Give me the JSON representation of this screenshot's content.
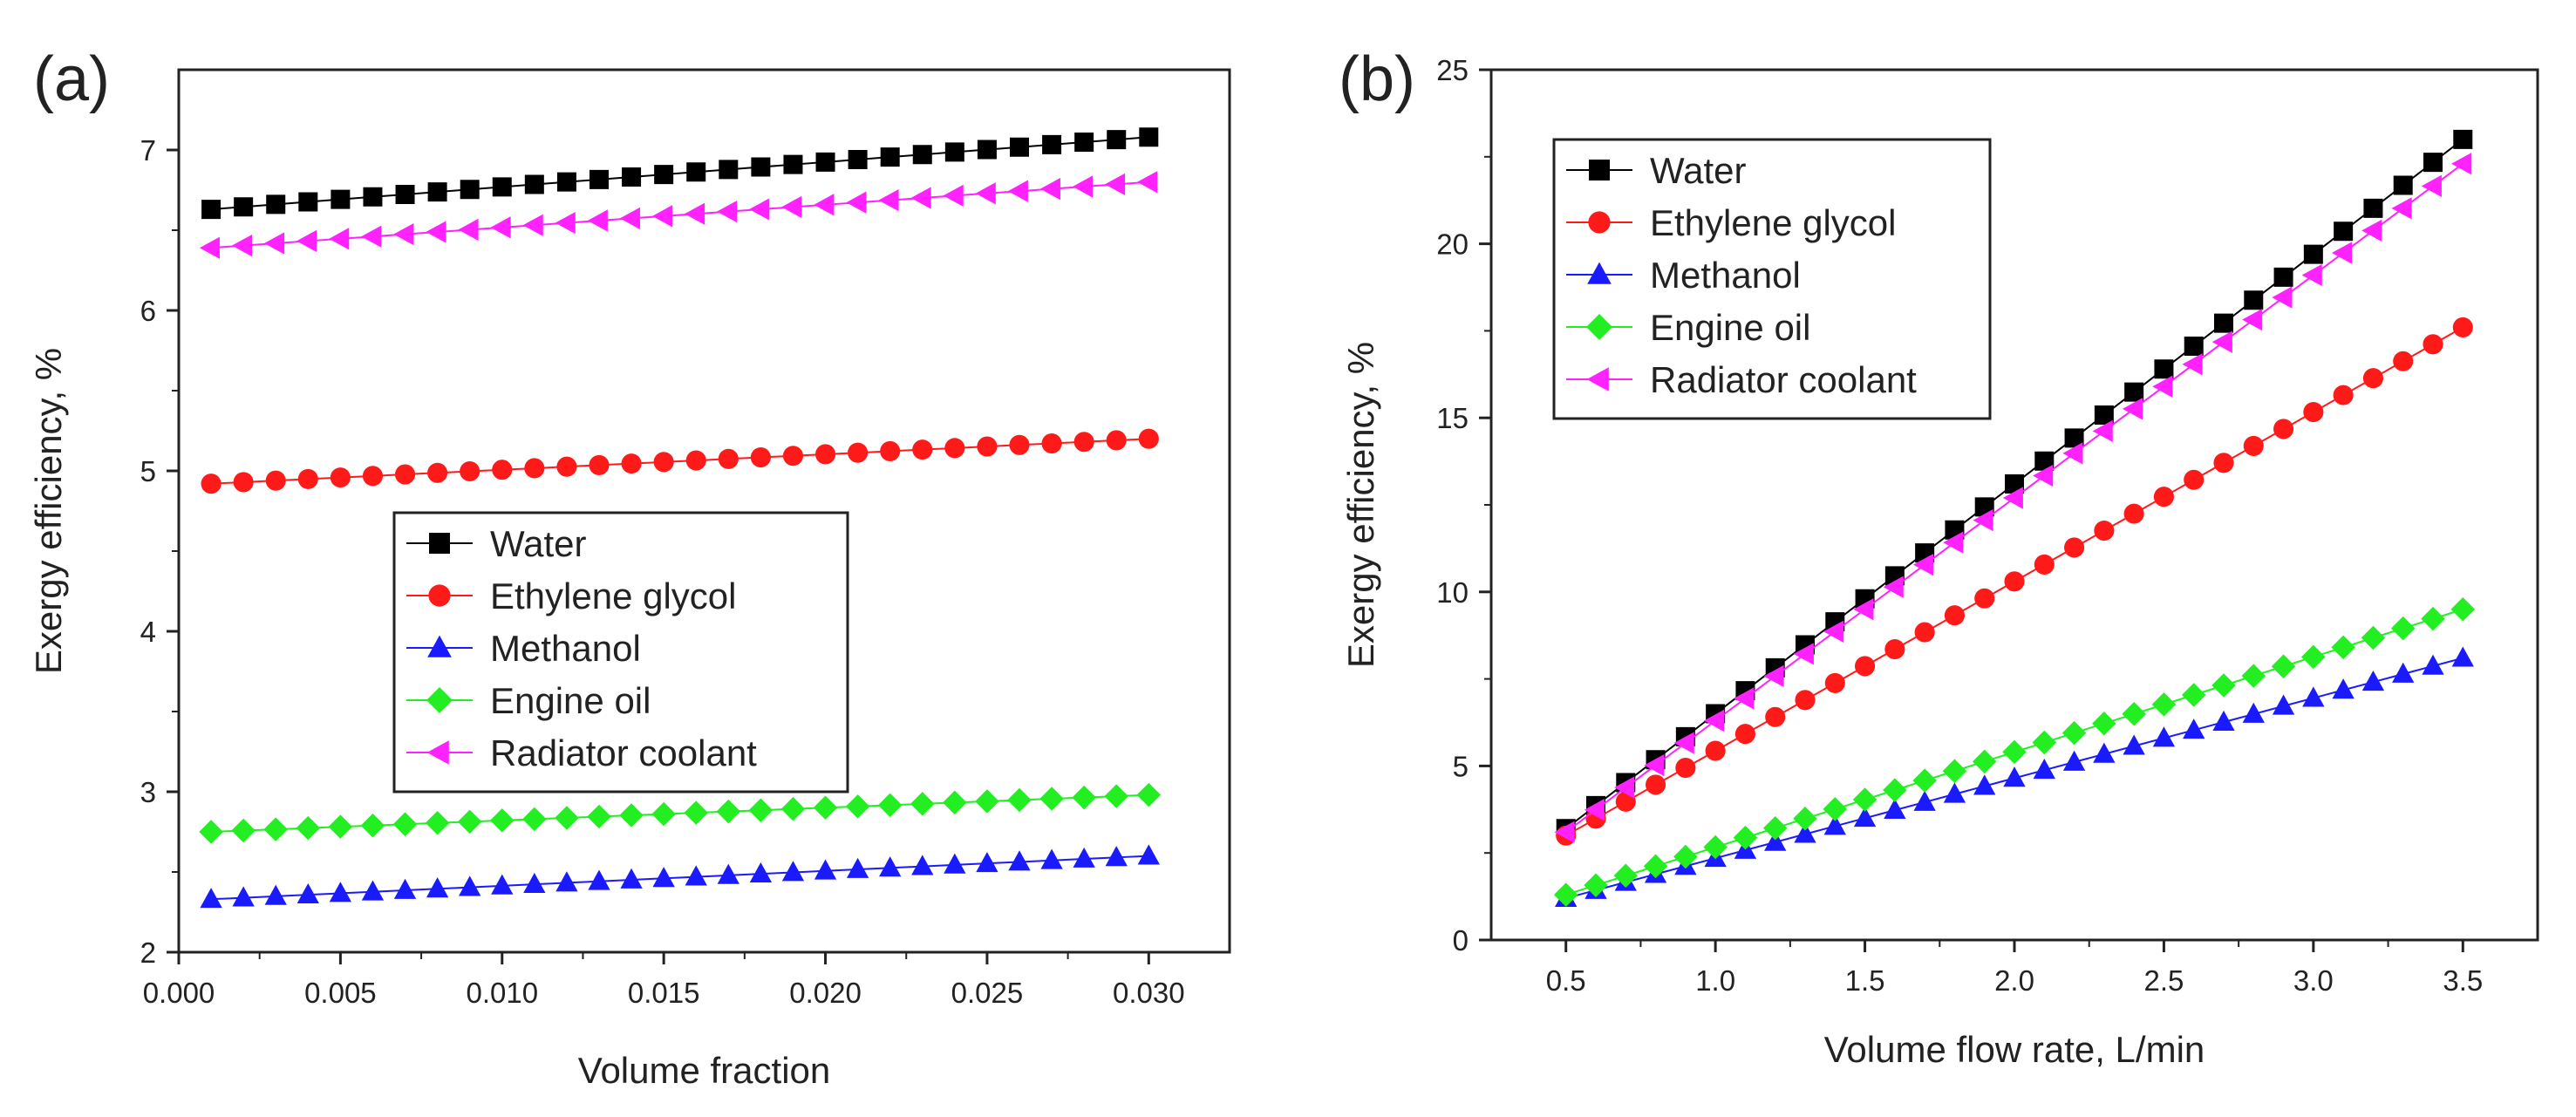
{
  "figure": {
    "panels": [
      "(a)",
      "(b)"
    ]
  },
  "colors": {
    "Water": "#000000",
    "Ethylene glycol": "#ff1a1a",
    "Methanol": "#1a1aff",
    "Engine oil": "#22ee22",
    "Radiator coolant": "#ff22ff"
  },
  "markers": {
    "Water": "square",
    "Ethylene glycol": "circle",
    "Methanol": "triangle-up",
    "Engine oil": "diamond",
    "Radiator coolant": "triangle-left"
  },
  "chart_data": [
    {
      "panel_label": "(a)",
      "type": "line",
      "title": "",
      "xlabel": "Volume fraction",
      "ylabel": "Exergy efficiency, %",
      "xlim": [
        0.0,
        0.0325
      ],
      "ylim": [
        2,
        7.5
      ],
      "xticks": [
        0.0,
        0.005,
        0.01,
        0.015,
        0.02,
        0.025,
        0.03
      ],
      "xtick_labels": [
        "0.000",
        "0.005",
        "0.010",
        "0.015",
        "0.020",
        "0.025",
        "0.030"
      ],
      "yticks": [
        2,
        3,
        4,
        5,
        6,
        7
      ],
      "ytick_labels": [
        "2",
        "3",
        "4",
        "5",
        "6",
        "7"
      ],
      "legend_position": "center",
      "x": {
        "start": 0.001,
        "end": 0.03,
        "count": 30
      },
      "series": [
        {
          "name": "Water",
          "start": 6.63,
          "end": 7.08
        },
        {
          "name": "Ethylene glycol",
          "start": 4.92,
          "end": 5.2
        },
        {
          "name": "Methanol",
          "start": 2.33,
          "end": 2.6
        },
        {
          "name": "Engine oil",
          "start": 2.75,
          "end": 2.98
        },
        {
          "name": "Radiator coolant",
          "start": 6.39,
          "end": 6.8
        }
      ]
    },
    {
      "panel_label": "(b)",
      "type": "line",
      "title": "",
      "xlabel": "Volume flow rate, L/min",
      "ylabel": "Exergy efficiency, %",
      "xlim": [
        0.25,
        3.75
      ],
      "ylim": [
        0,
        25
      ],
      "xticks": [
        0.5,
        1.0,
        1.5,
        2.0,
        2.5,
        3.0,
        3.5
      ],
      "xtick_labels": [
        "0.5",
        "1.0",
        "1.5",
        "2.0",
        "2.5",
        "3.0",
        "3.5"
      ],
      "yticks": [
        0,
        5,
        10,
        15,
        20,
        25
      ],
      "ytick_labels": [
        "0",
        "5",
        "10",
        "15",
        "20",
        "25"
      ],
      "legend_position": "top-left",
      "x": {
        "start": 0.5,
        "end": 3.5,
        "count": 31
      },
      "series": [
        {
          "name": "Water",
          "start": 3.2,
          "end": 23.0
        },
        {
          "name": "Ethylene glycol",
          "start": 3.0,
          "end": 17.6
        },
        {
          "name": "Methanol",
          "start": 1.2,
          "end": 8.1
        },
        {
          "name": "Engine oil",
          "start": 1.3,
          "end": 9.5
        },
        {
          "name": "Radiator coolant",
          "start": 3.1,
          "end": 22.3
        }
      ]
    }
  ]
}
